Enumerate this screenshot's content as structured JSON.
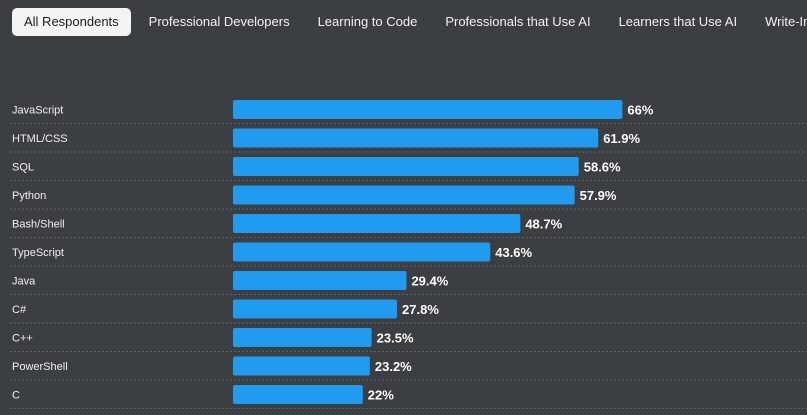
{
  "tabs": [
    {
      "label": "All Respondents",
      "active": true
    },
    {
      "label": "Professional Developers",
      "active": false
    },
    {
      "label": "Learning to Code",
      "active": false
    },
    {
      "label": "Professionals that Use AI",
      "active": false
    },
    {
      "label": "Learners that Use AI",
      "active": false
    },
    {
      "label": "Write-Ins",
      "active": false
    }
  ],
  "colors": {
    "bar": "#1f9bf0",
    "background": "#3c3f42"
  },
  "chart_data": {
    "type": "bar",
    "orientation": "horizontal",
    "categories": [
      "JavaScript",
      "HTML/CSS",
      "SQL",
      "Python",
      "Bash/Shell",
      "TypeScript",
      "Java",
      "C#",
      "C++",
      "PowerShell",
      "C"
    ],
    "values": [
      66,
      61.9,
      58.6,
      57.9,
      48.7,
      43.6,
      29.4,
      27.8,
      23.5,
      23.2,
      22
    ],
    "value_labels": [
      "66%",
      "61.9%",
      "58.6%",
      "57.9%",
      "48.7%",
      "43.6%",
      "29.4%",
      "27.8%",
      "23.5%",
      "23.2%",
      "22%"
    ],
    "unit": "%",
    "xlim": [
      0,
      100
    ]
  }
}
